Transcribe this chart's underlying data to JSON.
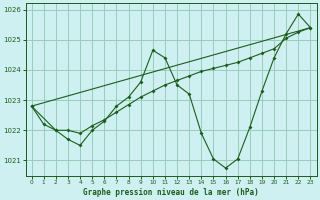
{
  "title": "Graphe pression niveau de la mer (hPa)",
  "bg_color": "#cff0f0",
  "grid_color": "#99ccbb",
  "line_color": "#1a5e1a",
  "xlim": [
    -0.5,
    23.5
  ],
  "ylim": [
    1020.5,
    1026.2
  ],
  "yticks": [
    1021,
    1022,
    1023,
    1024,
    1025,
    1026
  ],
  "xticks": [
    0,
    1,
    2,
    3,
    4,
    5,
    6,
    7,
    8,
    9,
    10,
    11,
    12,
    13,
    14,
    15,
    16,
    17,
    18,
    19,
    20,
    21,
    22,
    23
  ],
  "series1": [
    [
      0,
      1022.8
    ],
    [
      1,
      1022.2
    ],
    [
      2,
      1022.0
    ],
    [
      3,
      1021.7
    ],
    [
      4,
      1021.5
    ],
    [
      5,
      1022.0
    ],
    [
      6,
      1022.3
    ],
    [
      7,
      1022.8
    ],
    [
      8,
      1023.1
    ],
    [
      9,
      1023.6
    ],
    [
      10,
      1024.65
    ],
    [
      11,
      1024.4
    ],
    [
      12,
      1023.5
    ],
    [
      13,
      1023.2
    ],
    [
      14,
      1021.9
    ],
    [
      15,
      1021.05
    ],
    [
      16,
      1020.75
    ],
    [
      17,
      1021.05
    ],
    [
      18,
      1022.1
    ],
    [
      19,
      1023.3
    ],
    [
      20,
      1024.4
    ],
    [
      21,
      1025.2
    ],
    [
      22,
      1025.85
    ],
    [
      23,
      1025.4
    ]
  ],
  "series2": [
    [
      0,
      1022.8
    ],
    [
      2,
      1022.0
    ],
    [
      3,
      1022.0
    ],
    [
      4,
      1021.9
    ],
    [
      5,
      1022.15
    ],
    [
      6,
      1022.35
    ],
    [
      7,
      1022.6
    ],
    [
      8,
      1022.85
    ],
    [
      9,
      1023.1
    ],
    [
      10,
      1023.3
    ],
    [
      11,
      1023.5
    ],
    [
      12,
      1023.65
    ],
    [
      13,
      1023.8
    ],
    [
      14,
      1023.95
    ],
    [
      15,
      1024.05
    ],
    [
      16,
      1024.15
    ],
    [
      17,
      1024.25
    ],
    [
      18,
      1024.4
    ],
    [
      19,
      1024.55
    ],
    [
      20,
      1024.7
    ],
    [
      21,
      1025.05
    ],
    [
      22,
      1025.25
    ],
    [
      23,
      1025.4
    ]
  ],
  "series3": [
    [
      0,
      1022.8
    ],
    [
      23,
      1025.4
    ]
  ]
}
